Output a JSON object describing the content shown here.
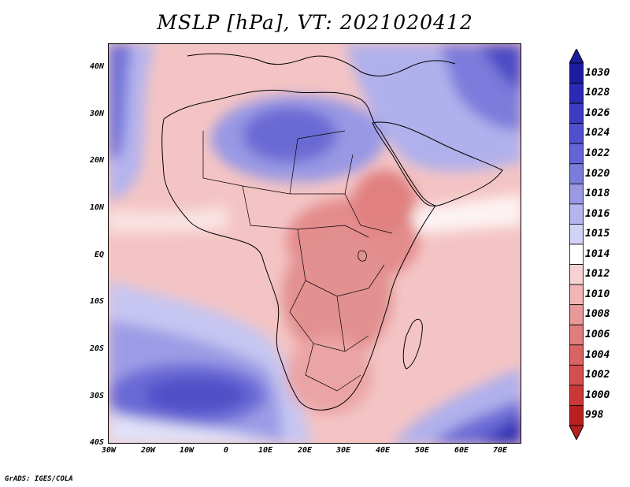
{
  "title": "MSLP [hPa], VT: 2021020412",
  "credit": "GrADS: IGES/COLA",
  "lat_labels": [
    "40N",
    "30N",
    "20N",
    "10N",
    "EQ",
    "10S",
    "20S",
    "30S",
    "40S"
  ],
  "lon_labels": [
    "30W",
    "20W",
    "10W",
    "0",
    "10E",
    "20E",
    "30E",
    "40E",
    "50E",
    "60E",
    "70E"
  ],
  "colorbar": {
    "levels": [
      "1030",
      "1028",
      "1026",
      "1024",
      "1022",
      "1020",
      "1018",
      "1016",
      "1015",
      "1014",
      "1012",
      "1010",
      "1008",
      "1006",
      "1004",
      "1002",
      "1000",
      "998"
    ],
    "colors": [
      "#1c1c9e",
      "#2a2ab4",
      "#3b3bc4",
      "#4f4fd0",
      "#6464d6",
      "#7c7cdc",
      "#9999e4",
      "#b5b5ee",
      "#d2d2f7",
      "#ffffff",
      "#f7d2d2",
      "#f2b5b5",
      "#e89a9a",
      "#e07d7d",
      "#da6464",
      "#d44f4f",
      "#cc3838",
      "#b81f1f"
    ]
  },
  "map_colors": {
    "ocean_base": "#f4bfbf",
    "deep_low": "#dc7b7b",
    "low": "#e89898",
    "mid_low": "#f0b0b0",
    "neutral": "#ffffff",
    "high_light": "#c8c8f4",
    "high": "#8c8ce0",
    "high_strong": "#5454cc",
    "high_max": "#2828aa",
    "coast": "#000000"
  }
}
